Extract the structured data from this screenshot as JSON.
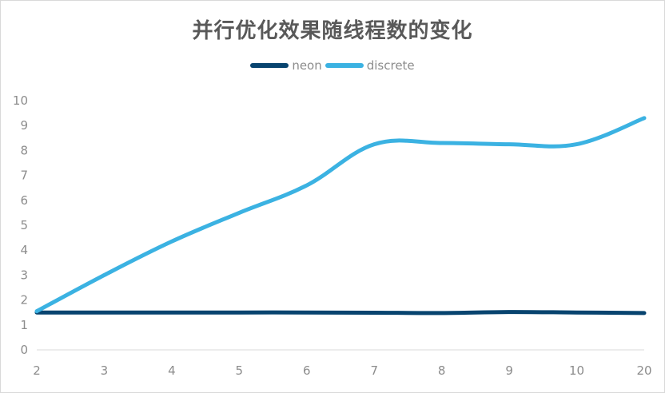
{
  "chart_data": {
    "type": "line",
    "title": "并行优化效果随线程数的变化",
    "xlabel": "",
    "ylabel": "",
    "categories": [
      "2",
      "3",
      "4",
      "5",
      "6",
      "7",
      "8",
      "9",
      "10",
      "20"
    ],
    "ylim": [
      0,
      10
    ],
    "yticks": [
      "0",
      "1",
      "2",
      "3",
      "4",
      "5",
      "6",
      "7",
      "8",
      "9",
      "10"
    ],
    "grid": false,
    "legend_position": "top",
    "smooth": true,
    "series": [
      {
        "name": "neon",
        "color": "#08446f",
        "values": [
          1.5,
          1.5,
          1.5,
          1.5,
          1.5,
          1.49,
          1.48,
          1.52,
          1.5,
          1.48
        ]
      },
      {
        "name": "discrete",
        "color": "#3bb2e2",
        "values": [
          1.55,
          3.0,
          4.35,
          5.5,
          6.6,
          8.25,
          8.3,
          8.25,
          8.25,
          9.3
        ]
      }
    ]
  }
}
